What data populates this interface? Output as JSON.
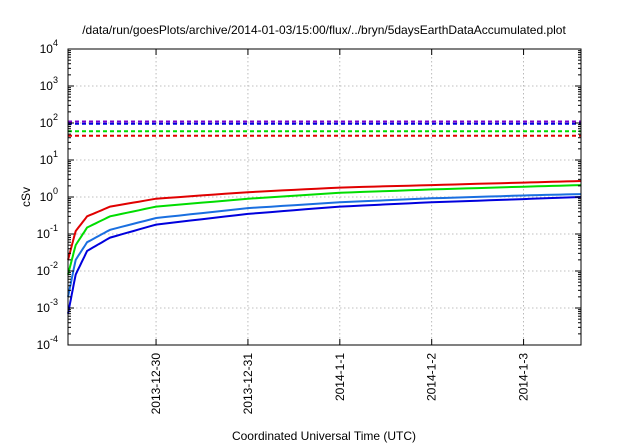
{
  "chart_data": {
    "type": "line",
    "title": "/data/run/goesPlots/archive/2014-01-03/15:00/flux/../bryn/5daysEarthDataAccumulated.plot",
    "xlabel": "Coordinated Universal Time (UTC)",
    "ylabel": "cSv",
    "x_scale": "time",
    "y_scale": "log",
    "xlim": [
      "2013-12-29 01:00",
      "2014-01-03 15:00"
    ],
    "ylim": [
      0.0001,
      10000
    ],
    "grid": true,
    "legend": "none",
    "x_ticks": [
      "2013-12-30",
      "2013-12-31",
      "2014-1-1",
      "2014-1-2",
      "2014-1-3"
    ],
    "y_ticks": [
      {
        "base": "10",
        "exp": "-4"
      },
      {
        "base": "10",
        "exp": "-3"
      },
      {
        "base": "10",
        "exp": "-2"
      },
      {
        "base": "10",
        "exp": "-1"
      },
      {
        "base": "10",
        "exp": "0"
      },
      {
        "base": "10",
        "exp": "1"
      },
      {
        "base": "10",
        "exp": "2"
      },
      {
        "base": "10",
        "exp": "3"
      },
      {
        "base": "10",
        "exp": "4"
      }
    ],
    "series": [
      {
        "color": "#e00000",
        "style": "solid",
        "x": [
          "2013-12-29 01:00",
          "2013-12-29 03:00",
          "2013-12-29 06:00",
          "2013-12-29 12:00",
          "2013-12-30 00:00",
          "2013-12-31 00:00",
          "2014-01-01 00:00",
          "2014-01-02 00:00",
          "2014-01-03 00:00",
          "2014-01-03 15:00"
        ],
        "y": [
          0.02,
          0.12,
          0.3,
          0.55,
          0.9,
          1.35,
          1.8,
          2.1,
          2.45,
          2.7
        ]
      },
      {
        "color": "#00dd00",
        "style": "solid",
        "x": [
          "2013-12-29 01:00",
          "2013-12-29 03:00",
          "2013-12-29 06:00",
          "2013-12-29 12:00",
          "2013-12-30 00:00",
          "2013-12-31 00:00",
          "2014-01-01 00:00",
          "2014-01-02 00:00",
          "2014-01-03 00:00",
          "2014-01-03 15:00"
        ],
        "y": [
          0.008,
          0.05,
          0.15,
          0.3,
          0.55,
          0.9,
          1.3,
          1.6,
          1.9,
          2.1
        ]
      },
      {
        "color": "#1a6fe0",
        "style": "solid",
        "x": [
          "2013-12-29 01:00",
          "2013-12-29 03:00",
          "2013-12-29 06:00",
          "2013-12-29 12:00",
          "2013-12-30 00:00",
          "2013-12-31 00:00",
          "2014-01-01 00:00",
          "2014-01-02 00:00",
          "2014-01-03 00:00",
          "2014-01-03 15:00"
        ],
        "y": [
          0.002,
          0.02,
          0.06,
          0.13,
          0.27,
          0.5,
          0.72,
          0.92,
          1.1,
          1.2
        ]
      },
      {
        "color": "#0000dd",
        "style": "solid",
        "x": [
          "2013-12-29 01:00",
          "2013-12-29 03:00",
          "2013-12-29 06:00",
          "2013-12-29 12:00",
          "2013-12-30 00:00",
          "2013-12-31 00:00",
          "2014-01-01 00:00",
          "2014-01-02 00:00",
          "2014-01-03 00:00",
          "2014-01-03 15:00"
        ],
        "y": [
          0.0007,
          0.008,
          0.035,
          0.08,
          0.18,
          0.35,
          0.55,
          0.72,
          0.88,
          1.0
        ]
      },
      {
        "color": "#7700cc",
        "style": "dashed",
        "x": [
          "2013-12-29 01:00",
          "2014-01-03 15:00"
        ],
        "y": [
          110,
          110
        ]
      },
      {
        "color": "#0000dd",
        "style": "dashed",
        "x": [
          "2013-12-29 01:00",
          "2014-01-03 15:00"
        ],
        "y": [
          95,
          95
        ]
      },
      {
        "color": "#00dd00",
        "style": "dashed",
        "x": [
          "2013-12-29 01:00",
          "2014-01-03 15:00"
        ],
        "y": [
          60,
          60
        ]
      },
      {
        "color": "#e00000",
        "style": "dashed",
        "x": [
          "2013-12-29 01:00",
          "2014-01-03 15:00"
        ],
        "y": [
          45,
          45
        ]
      }
    ]
  }
}
